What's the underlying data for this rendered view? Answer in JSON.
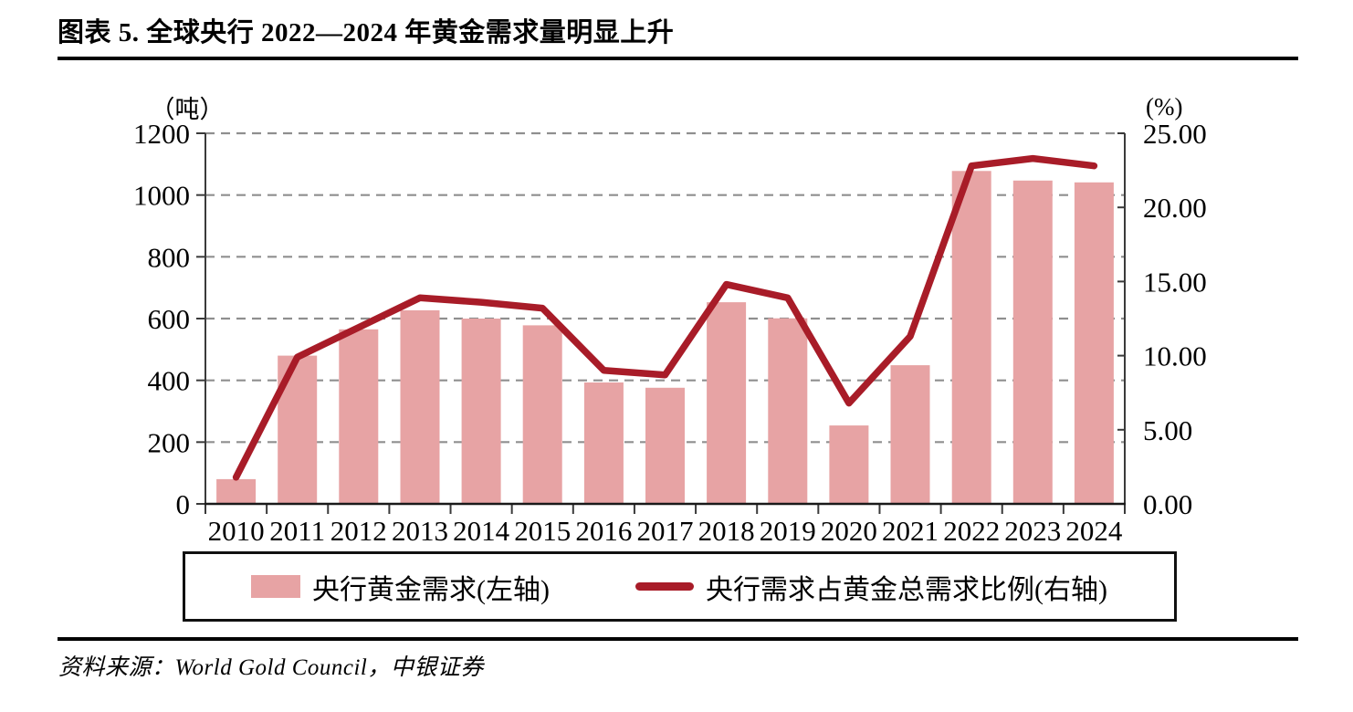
{
  "title": "图表 5. 全球央行 2022—2024 年黄金需求量明显上升",
  "source_note": "资料来源：World Gold Council，中银证券",
  "legend": {
    "items": [
      {
        "label": "央行黄金需求(左轴)",
        "color": "#e7a3a4",
        "type": "bar"
      },
      {
        "label": "央行需求占黄金总需求比例(右轴)",
        "color": "#a81c28",
        "type": "line"
      }
    ]
  },
  "chart_data": {
    "type": "combo",
    "title": "图表 5. 全球央行 2022—2024 年黄金需求量明显上升",
    "categories": [
      "2010",
      "2011",
      "2012",
      "2013",
      "2014",
      "2015",
      "2016",
      "2017",
      "2018",
      "2019",
      "2020",
      "2021",
      "2022",
      "2023",
      "2024"
    ],
    "series": [
      {
        "name": "央行黄金需求(左轴)",
        "type": "bar",
        "axis": "left",
        "unit": "吨",
        "color": "#e7a3a4",
        "values": [
          80,
          480,
          565,
          627,
          600,
          578,
          393,
          376,
          653,
          601,
          254,
          449,
          1078,
          1047,
          1041
        ]
      },
      {
        "name": "央行需求占黄金总需求比例(右轴)",
        "type": "line",
        "axis": "right",
        "unit": "%",
        "color": "#a81c28",
        "values": [
          1.8,
          9.9,
          11.9,
          13.9,
          13.6,
          13.2,
          9.0,
          8.7,
          14.8,
          13.9,
          6.8,
          11.3,
          22.8,
          23.3,
          22.8
        ]
      }
    ],
    "left_axis": {
      "label": "（吨）",
      "min": 0,
      "max": 1200,
      "step": 200,
      "tick_labels": [
        "0",
        "200",
        "400",
        "600",
        "800",
        "1000",
        "1200"
      ]
    },
    "right_axis": {
      "label": "(%)",
      "min": 0,
      "max": 25,
      "step": 5,
      "tick_labels": [
        "0.00",
        "5.00",
        "10.00",
        "15.00",
        "20.00",
        "25.00"
      ]
    },
    "grid": {
      "horizontal": "dashed",
      "color": "#8f8f8f"
    },
    "legend_position": "bottom"
  }
}
